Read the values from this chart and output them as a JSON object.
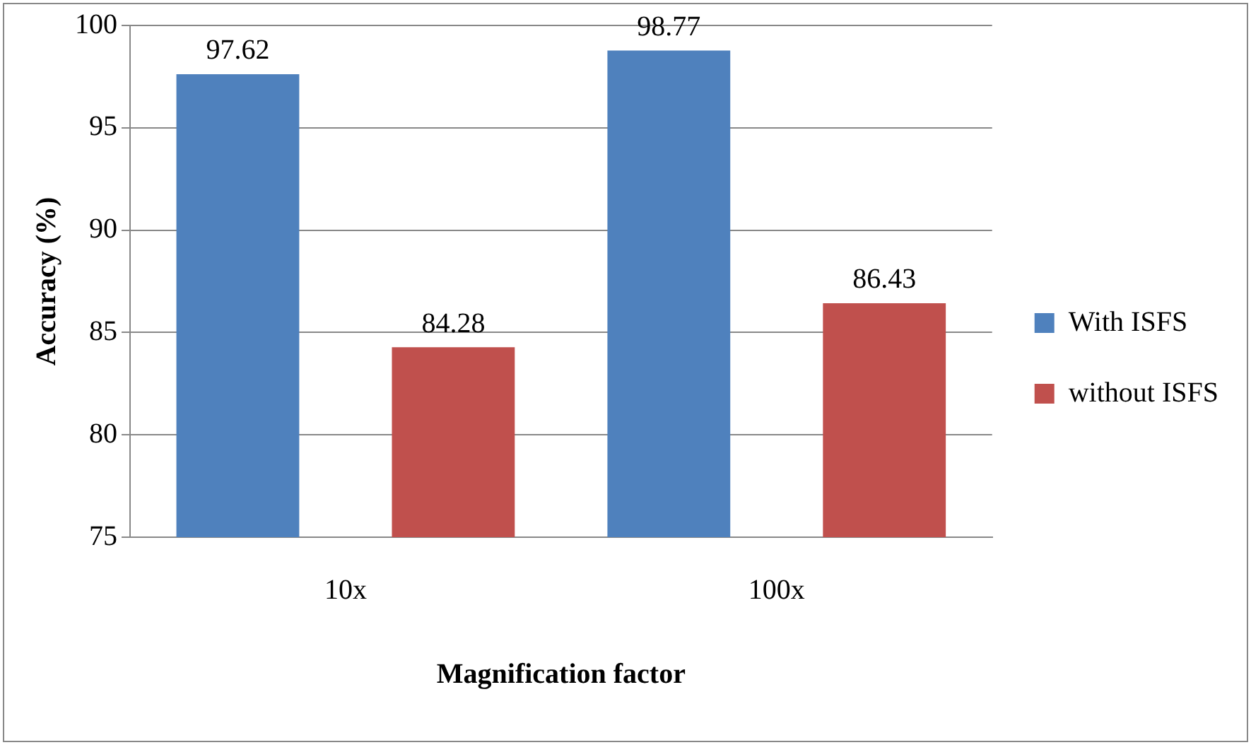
{
  "chart_data": {
    "type": "bar",
    "xlabel": "Magnification factor",
    "ylabel": "Accuracy (%)",
    "categories": [
      "10x",
      "100x"
    ],
    "series": [
      {
        "name": "With ISFS",
        "color": "#4f81bd",
        "values": [
          97.62,
          98.77
        ]
      },
      {
        "name": "without ISFS",
        "color": "#c0504d",
        "values": [
          84.28,
          86.43
        ]
      }
    ],
    "ylim": [
      75,
      100
    ],
    "yticks": [
      75,
      80,
      85,
      90,
      95,
      100
    ],
    "grid": "y",
    "legend": "right",
    "data_labels": true
  }
}
